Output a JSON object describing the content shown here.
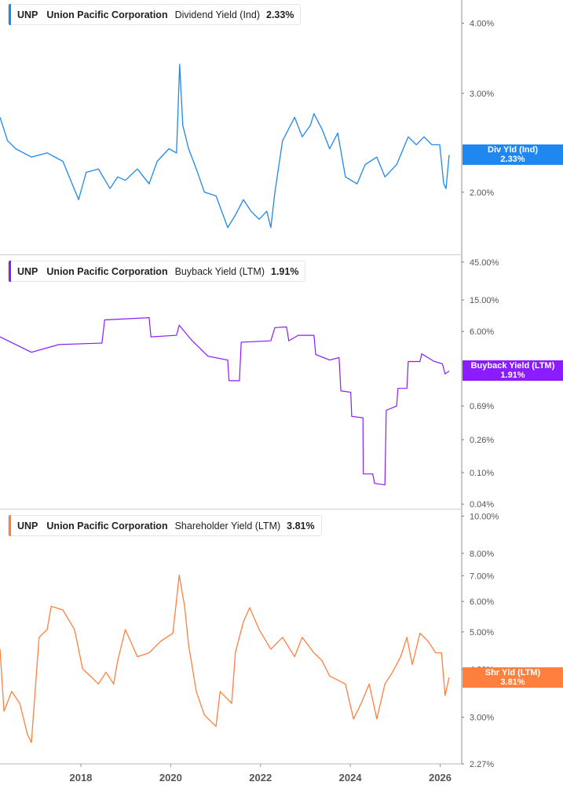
{
  "chart_data": [
    {
      "type": "line",
      "ticker": "UNP",
      "company": "Union Pacific Corporation",
      "metric": "Dividend Yield (Ind)",
      "value_label": "2.33%",
      "tag_label": "Div Yld (Ind)",
      "color": "#1e88f0",
      "y_scale": "log",
      "ylim": [
        1.55,
        4.4
      ],
      "y_ticks": [
        {
          "v": 4.0,
          "label": "4.00%"
        },
        {
          "v": 3.0,
          "label": "3.00%"
        },
        {
          "v": 2.0,
          "label": "2.00%"
        }
      ],
      "points": [
        [
          2016.2,
          2.72
        ],
        [
          2016.37,
          2.47
        ],
        [
          2016.55,
          2.39
        ],
        [
          2016.9,
          2.31
        ],
        [
          2017.25,
          2.35
        ],
        [
          2017.6,
          2.27
        ],
        [
          2017.95,
          1.94
        ],
        [
          2018.12,
          2.17
        ],
        [
          2018.39,
          2.2
        ],
        [
          2018.65,
          2.03
        ],
        [
          2018.82,
          2.13
        ],
        [
          2018.99,
          2.1
        ],
        [
          2019.26,
          2.2
        ],
        [
          2019.52,
          2.07
        ],
        [
          2019.7,
          2.27
        ],
        [
          2019.96,
          2.39
        ],
        [
          2020.13,
          2.35
        ],
        [
          2020.2,
          3.38
        ],
        [
          2020.27,
          2.63
        ],
        [
          2020.4,
          2.39
        ],
        [
          2020.57,
          2.2
        ],
        [
          2020.75,
          2.0
        ],
        [
          2021.01,
          1.97
        ],
        [
          2021.27,
          1.73
        ],
        [
          2021.44,
          1.82
        ],
        [
          2021.62,
          1.94
        ],
        [
          2021.79,
          1.85
        ],
        [
          2021.97,
          1.79
        ],
        [
          2022.14,
          1.85
        ],
        [
          2022.23,
          1.73
        ],
        [
          2022.32,
          2.0
        ],
        [
          2022.49,
          2.47
        ],
        [
          2022.76,
          2.72
        ],
        [
          2022.93,
          2.51
        ],
        [
          2023.11,
          2.63
        ],
        [
          2023.19,
          2.76
        ],
        [
          2023.37,
          2.59
        ],
        [
          2023.54,
          2.39
        ],
        [
          2023.72,
          2.55
        ],
        [
          2023.89,
          2.13
        ],
        [
          2024.15,
          2.07
        ],
        [
          2024.33,
          2.24
        ],
        [
          2024.59,
          2.31
        ],
        [
          2024.77,
          2.13
        ],
        [
          2025.03,
          2.24
        ],
        [
          2025.29,
          2.51
        ],
        [
          2025.47,
          2.43
        ],
        [
          2025.64,
          2.51
        ],
        [
          2025.82,
          2.43
        ],
        [
          2025.99,
          2.43
        ],
        [
          2026.08,
          2.07
        ],
        [
          2026.13,
          2.03
        ],
        [
          2026.2,
          2.33
        ]
      ]
    },
    {
      "type": "line",
      "ticker": "UNP",
      "company": "Union Pacific Corporation",
      "metric": "Buyback Yield (LTM)",
      "value_label": "1.91%",
      "tag_label": "Buyback Yield (LTM)",
      "color": "#8a1cff",
      "y_scale": "log",
      "ylim": [
        0.035,
        55
      ],
      "y_ticks": [
        {
          "v": 45,
          "label": "45.00%"
        },
        {
          "v": 15,
          "label": "15.00%"
        },
        {
          "v": 6,
          "label": "6.00%"
        },
        {
          "v": 0.69,
          "label": "0.69%"
        },
        {
          "v": 0.26,
          "label": "0.26%"
        },
        {
          "v": 0.1,
          "label": "0.10%"
        },
        {
          "v": 0.04,
          "label": "0.04%"
        }
      ],
      "points": [
        [
          2016.2,
          5.13
        ],
        [
          2016.9,
          3.28
        ],
        [
          2017.51,
          4.1
        ],
        [
          2018.47,
          4.29
        ],
        [
          2018.53,
          8.39
        ],
        [
          2019.52,
          8.97
        ],
        [
          2019.56,
          5.13
        ],
        [
          2020.13,
          5.37
        ],
        [
          2020.19,
          7.17
        ],
        [
          2020.48,
          4.58
        ],
        [
          2020.83,
          2.93
        ],
        [
          2021.27,
          2.62
        ],
        [
          2021.3,
          1.44
        ],
        [
          2021.53,
          1.44
        ],
        [
          2021.57,
          4.39
        ],
        [
          2022.23,
          4.58
        ],
        [
          2022.32,
          6.71
        ],
        [
          2022.58,
          6.86
        ],
        [
          2022.63,
          4.58
        ],
        [
          2022.84,
          5.37
        ],
        [
          2023.19,
          5.37
        ],
        [
          2023.23,
          3.07
        ],
        [
          2023.54,
          2.62
        ],
        [
          2023.75,
          2.81
        ],
        [
          2023.79,
          1.07
        ],
        [
          2024.01,
          1.03
        ],
        [
          2024.03,
          0.51
        ],
        [
          2024.28,
          0.49
        ],
        [
          2024.29,
          0.096
        ],
        [
          2024.5,
          0.096
        ],
        [
          2024.54,
          0.073
        ],
        [
          2024.77,
          0.07
        ],
        [
          2024.8,
          0.61
        ],
        [
          2025.03,
          0.69
        ],
        [
          2025.06,
          1.15
        ],
        [
          2025.26,
          1.15
        ],
        [
          2025.29,
          2.51
        ],
        [
          2025.55,
          2.51
        ],
        [
          2025.59,
          3.14
        ],
        [
          2025.87,
          2.51
        ],
        [
          2026.05,
          2.35
        ],
        [
          2026.11,
          1.75
        ],
        [
          2026.2,
          1.91
        ]
      ]
    },
    {
      "type": "line",
      "ticker": "UNP",
      "company": "Union Pacific Corporation",
      "metric": "Shareholder Yield (LTM)",
      "value_label": "3.81%",
      "tag_label": "Shr Yld (LTM)",
      "color": "#ff7f3f",
      "y_scale": "log",
      "ylim": [
        2.27,
        10.4
      ],
      "y_ticks": [
        {
          "v": 10,
          "label": "10.00%"
        },
        {
          "v": 8,
          "label": "8.00%"
        },
        {
          "v": 7,
          "label": "7.00%"
        },
        {
          "v": 6,
          "label": "6.00%"
        },
        {
          "v": 5,
          "label": "5.00%"
        },
        {
          "v": 4,
          "label": "4.00%"
        },
        {
          "v": 3,
          "label": "3.00%"
        },
        {
          "v": 2.27,
          "label": "2.27%"
        }
      ],
      "points": [
        [
          2016.2,
          4.51
        ],
        [
          2016.29,
          3.11
        ],
        [
          2016.46,
          3.5
        ],
        [
          2016.64,
          3.26
        ],
        [
          2016.81,
          2.71
        ],
        [
          2016.9,
          2.58
        ],
        [
          2017.07,
          4.84
        ],
        [
          2017.25,
          5.07
        ],
        [
          2017.34,
          5.83
        ],
        [
          2017.6,
          5.7
        ],
        [
          2017.86,
          5.07
        ],
        [
          2018.04,
          4.01
        ],
        [
          2018.21,
          3.84
        ],
        [
          2018.39,
          3.66
        ],
        [
          2018.56,
          3.93
        ],
        [
          2018.73,
          3.66
        ],
        [
          2018.82,
          4.21
        ],
        [
          2018.99,
          5.07
        ],
        [
          2019.26,
          4.31
        ],
        [
          2019.52,
          4.41
        ],
        [
          2019.78,
          4.73
        ],
        [
          2020.05,
          4.96
        ],
        [
          2020.19,
          7.02
        ],
        [
          2020.31,
          5.83
        ],
        [
          2020.4,
          4.62
        ],
        [
          2020.57,
          3.5
        ],
        [
          2020.75,
          3.04
        ],
        [
          2021.01,
          2.84
        ],
        [
          2021.1,
          3.5
        ],
        [
          2021.36,
          3.26
        ],
        [
          2021.44,
          4.41
        ],
        [
          2021.62,
          5.31
        ],
        [
          2021.76,
          5.78
        ],
        [
          2021.97,
          5.07
        ],
        [
          2022.23,
          4.51
        ],
        [
          2022.49,
          4.84
        ],
        [
          2022.76,
          4.31
        ],
        [
          2022.93,
          4.84
        ],
        [
          2023.19,
          4.41
        ],
        [
          2023.37,
          4.21
        ],
        [
          2023.54,
          3.84
        ],
        [
          2023.89,
          3.66
        ],
        [
          2024.07,
          2.97
        ],
        [
          2024.24,
          3.26
        ],
        [
          2024.42,
          3.66
        ],
        [
          2024.59,
          2.97
        ],
        [
          2024.77,
          3.66
        ],
        [
          2024.94,
          3.93
        ],
        [
          2025.12,
          4.31
        ],
        [
          2025.26,
          4.84
        ],
        [
          2025.38,
          4.11
        ],
        [
          2025.55,
          4.96
        ],
        [
          2025.73,
          4.73
        ],
        [
          2025.9,
          4.41
        ],
        [
          2026.03,
          4.41
        ],
        [
          2026.11,
          3.42
        ],
        [
          2026.2,
          3.81
        ]
      ]
    }
  ],
  "x_axis": {
    "xlim": [
      2016.2,
      2026.48
    ],
    "ticks": [
      {
        "v": 2018,
        "label": "2018"
      },
      {
        "v": 2020,
        "label": "2020"
      },
      {
        "v": 2022,
        "label": "2022"
      },
      {
        "v": 2024,
        "label": "2024"
      },
      {
        "v": 2026,
        "label": "2026"
      }
    ]
  }
}
